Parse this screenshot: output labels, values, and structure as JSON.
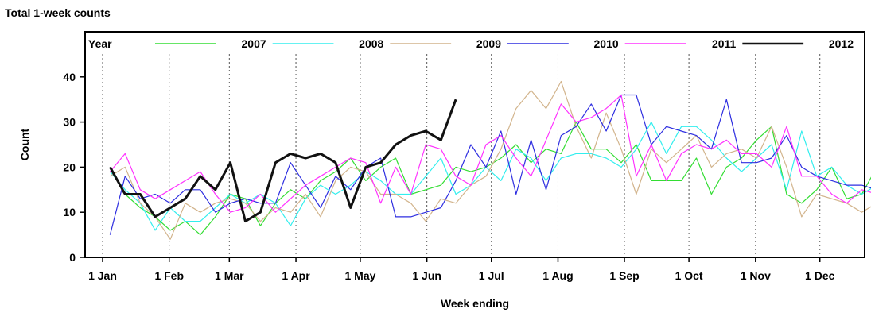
{
  "title": "Total 1-week counts",
  "chart_data": {
    "type": "line",
    "xlabel": "Week ending",
    "ylabel": "Count",
    "ylim": [
      0,
      50
    ],
    "yticks": [
      0,
      10,
      20,
      30,
      40
    ],
    "xlim": [
      0,
      52
    ],
    "xticks": [
      {
        "label": "1 Jan",
        "week": 0
      },
      {
        "label": "1 Feb",
        "week": 4.43
      },
      {
        "label": "1 Mar",
        "week": 8.43
      },
      {
        "label": "1 Apr",
        "week": 12.86
      },
      {
        "label": "1 May",
        "week": 17.14
      },
      {
        "label": "1 Jun",
        "week": 21.57
      },
      {
        "label": "1 Jul",
        "week": 25.86
      },
      {
        "label": "1 Aug",
        "week": 30.29
      },
      {
        "label": "1 Sep",
        "week": 34.71
      },
      {
        "label": "1 Oct",
        "week": 39.0
      },
      {
        "label": "1 Nov",
        "week": 43.43
      },
      {
        "label": "1 Dec",
        "week": 47.71
      }
    ],
    "grid": "vertical-dashed",
    "legend": {
      "title": "Year",
      "position": "top"
    },
    "series": [
      {
        "name": "2007",
        "color": "#33dd33",
        "width": 1.2,
        "x_start": 0.5,
        "values": [
          20,
          14,
          11,
          9,
          6,
          8,
          5,
          9,
          14,
          13,
          7,
          12,
          15,
          13,
          17,
          19,
          22,
          17,
          20,
          22,
          14,
          15,
          16,
          20,
          19,
          20,
          22,
          25,
          21,
          24,
          23,
          30,
          24,
          24,
          21,
          25,
          17,
          17,
          17,
          22,
          14,
          20,
          22,
          26,
          29,
          14,
          12,
          15,
          20,
          13,
          14,
          20,
          10,
          12,
          7,
          15
        ]
      },
      {
        "name": "2008",
        "color": "#33eeee",
        "width": 1.2,
        "x_start": 0.5,
        "values": [
          19,
          15,
          12,
          6,
          11,
          8,
          8,
          11,
          14,
          12,
          14,
          12,
          7,
          13,
          16,
          14,
          16,
          19,
          17,
          14,
          14,
          18,
          22,
          14,
          16,
          20,
          17,
          24,
          22,
          17,
          22,
          23,
          23,
          22,
          20,
          24,
          30,
          23,
          29,
          29,
          26,
          22,
          19,
          22,
          25,
          15,
          28,
          18,
          20,
          16,
          14,
          16,
          15,
          15,
          12,
          8,
          8
        ]
      },
      {
        "name": "2009",
        "color": "#d2b48c",
        "width": 1.2,
        "x_start": 0.5,
        "values": [
          18,
          20,
          12,
          9,
          4,
          12,
          10,
          12,
          13,
          12,
          8,
          11,
          10,
          14,
          9,
          17,
          20,
          19,
          14,
          14,
          12,
          8,
          13,
          12,
          16,
          18,
          24,
          33,
          37,
          33,
          39,
          29,
          22,
          32,
          24,
          14,
          24,
          21,
          24,
          27,
          20,
          23,
          24,
          22,
          29,
          20,
          9,
          14,
          13,
          12,
          10,
          12,
          11,
          12,
          8,
          16
        ]
      },
      {
        "name": "2010",
        "color": "#2e2ee0",
        "width": 1.2,
        "x_start": 0.5,
        "values": [
          5,
          18,
          13,
          14,
          12,
          15,
          15,
          10,
          12,
          13,
          12,
          12,
          21,
          16,
          11,
          18,
          15,
          20,
          22,
          9,
          9,
          10,
          11,
          17,
          25,
          20,
          28,
          14,
          26,
          15,
          27,
          29,
          34,
          28,
          36,
          36,
          25,
          29,
          28,
          27,
          24,
          35,
          21,
          21,
          22,
          27,
          20,
          18,
          17,
          16,
          16,
          15,
          15,
          17,
          19
        ]
      },
      {
        "name": "2011",
        "color": "#ff33ff",
        "width": 1.2,
        "x_start": 0.5,
        "values": [
          19,
          23,
          15,
          13,
          15,
          17,
          19,
          14,
          10,
          11,
          14,
          10,
          13,
          16,
          18,
          20,
          22,
          21,
          12,
          20,
          14,
          25,
          24,
          18,
          16,
          25,
          27,
          22,
          18,
          26,
          34,
          30,
          31,
          33,
          36,
          18,
          25,
          17,
          23,
          25,
          24,
          26,
          23,
          23,
          20,
          29,
          18,
          18,
          14,
          12,
          15,
          14,
          13,
          15,
          20,
          19,
          16
        ]
      },
      {
        "name": "2012",
        "color": "#111111",
        "width": 3,
        "x_start": 0.5,
        "values": [
          20,
          14,
          14,
          9,
          11,
          13,
          18,
          15,
          21,
          8,
          10,
          21,
          23,
          22,
          23,
          21,
          11,
          20,
          21,
          25,
          27,
          28,
          26,
          35
        ]
      }
    ]
  }
}
